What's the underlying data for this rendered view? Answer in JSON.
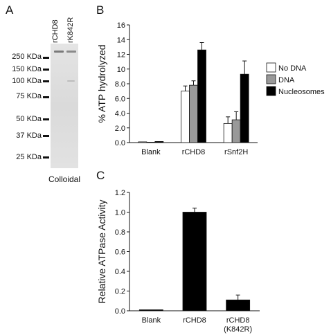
{
  "panels": {
    "a": {
      "letter": "A",
      "lanes": [
        "rCHD8",
        "rK842R"
      ],
      "markers": [
        "250 KDa",
        "150 KDa",
        "100 KDa",
        "75 KDa",
        "50 KDa",
        "37 KDa",
        "25 KDa"
      ],
      "caption": "Colloidal"
    },
    "b": {
      "letter": "B"
    },
    "c": {
      "letter": "C"
    }
  },
  "chart_data": [
    {
      "type": "bar",
      "title": "",
      "xlabel": "",
      "ylabel": "% ATP hydrolyzed",
      "ylim": [
        0,
        16
      ],
      "yticks": [
        "0.0",
        "2.0",
        "4.0",
        "6.0",
        "8.0",
        "10",
        "12",
        "14",
        "16"
      ],
      "categories": [
        "Blank",
        "rCHD8",
        "rSnf2H"
      ],
      "series": [
        {
          "name": "No DNA",
          "color": "#ffffff",
          "values": [
            0.1,
            7.0,
            2.6
          ],
          "errors": [
            0,
            0.7,
            0.9
          ]
        },
        {
          "name": "DNA",
          "color": "#999999",
          "values": [
            0.0,
            7.8,
            3.1
          ],
          "errors": [
            0,
            0.6,
            1.1
          ]
        },
        {
          "name": "Nucleosomes",
          "color": "#000000",
          "values": [
            0.15,
            12.6,
            9.3
          ],
          "errors": [
            0,
            1.0,
            1.8
          ]
        }
      ],
      "legend": "right",
      "grid": false
    },
    {
      "type": "bar",
      "title": "",
      "xlabel": "",
      "ylabel": "Relative ATPase Activity",
      "ylim": [
        0,
        1.2
      ],
      "yticks": [
        "0.0",
        "0.2",
        "0.4",
        "0.6",
        "0.8",
        "1.0",
        "1.2"
      ],
      "categories": [
        [
          "Blank"
        ],
        [
          "rCHD8"
        ],
        [
          "rCHD8",
          "(K842R)"
        ]
      ],
      "series": [
        {
          "name": "",
          "color": "#000000",
          "values": [
            0.01,
            1.0,
            0.11
          ],
          "errors": [
            0,
            0.04,
            0.05
          ]
        }
      ],
      "legend": "none",
      "grid": false
    }
  ]
}
